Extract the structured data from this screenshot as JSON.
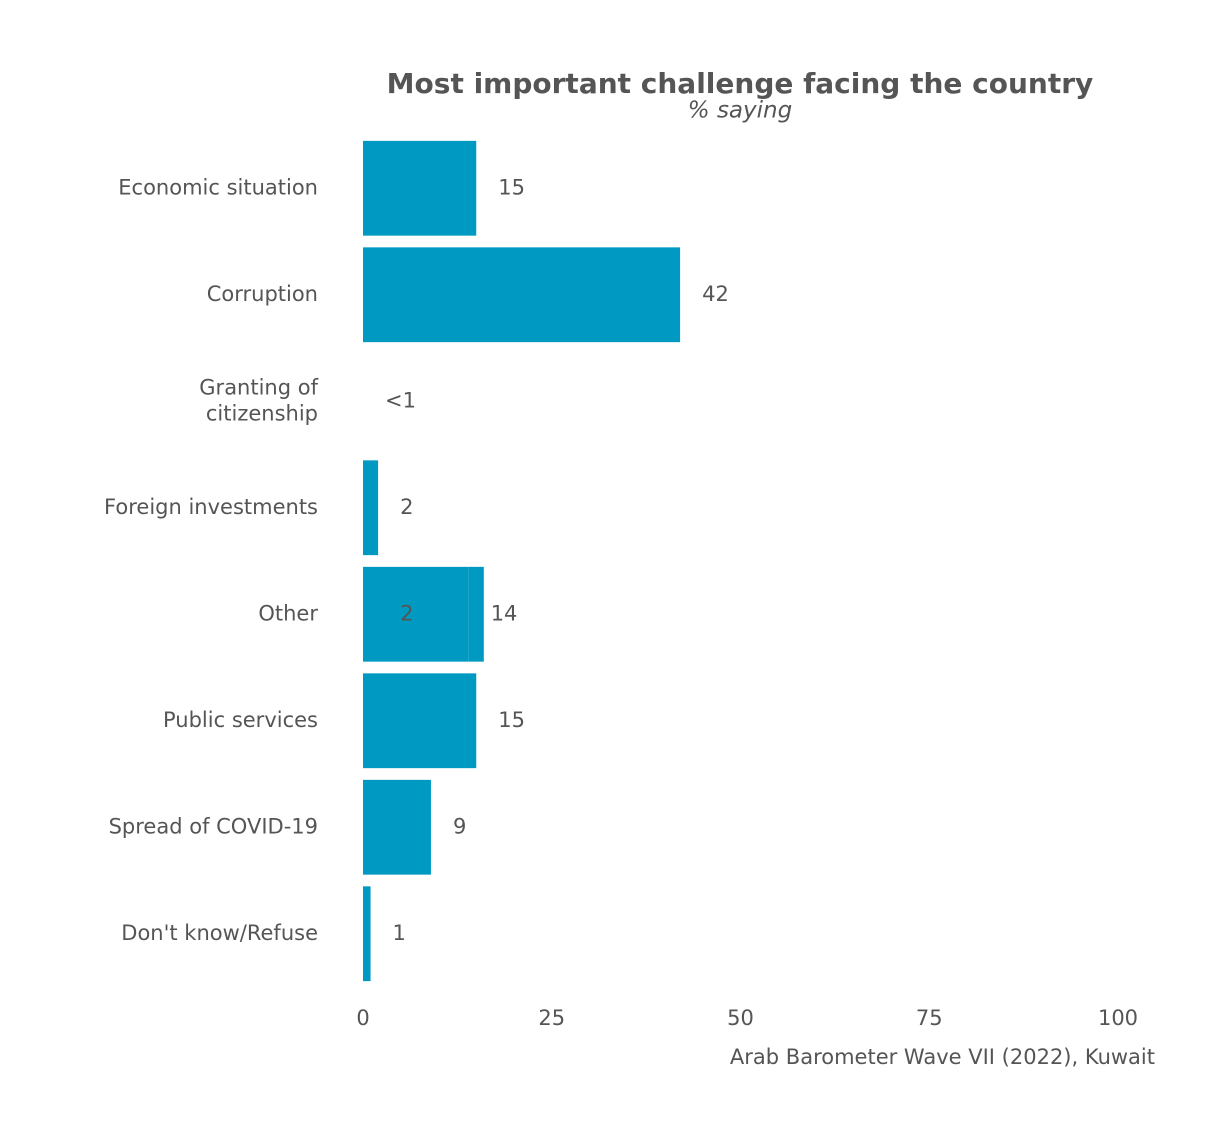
{
  "chart_data": {
    "type": "bar",
    "orientation": "horizontal",
    "title": "Most important challenge facing the country",
    "subtitle": "% saying",
    "source": "Arab Barometer Wave VII (2022), Kuwait",
    "categories": [
      "Economic situation",
      "Corruption",
      "Granting of citizenship",
      "Foreign investments",
      "Other",
      "Public services",
      "Spread of COVID-19",
      "Don't know/Refuse"
    ],
    "series": [
      {
        "color": "#0099c2",
        "values": [
          15,
          42,
          0,
          2,
          14,
          15,
          9,
          1
        ],
        "value_labels": [
          "15",
          "42",
          "<1",
          "2",
          "14",
          "15",
          "9",
          "1"
        ]
      },
      {
        "color": "#0099c2",
        "values": [
          null,
          null,
          null,
          null,
          2,
          null,
          null,
          null
        ]
      }
    ],
    "xlim": [
      0,
      100
    ],
    "xticks": [
      0,
      25,
      50,
      75,
      100
    ]
  }
}
